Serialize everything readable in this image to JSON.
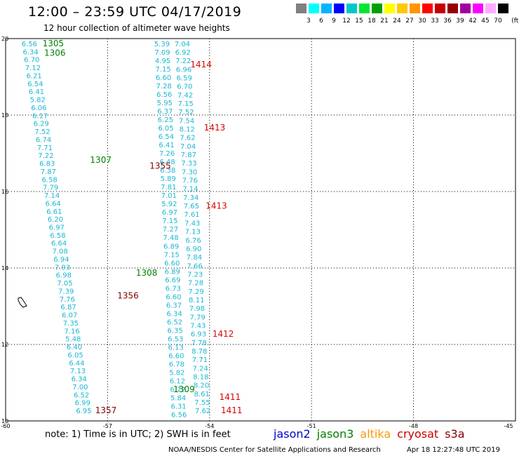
{
  "header": {
    "title": "12:00 – 23:59 UTC 04/17/2019",
    "subtitle": "12 hour collection of altimeter wave heights"
  },
  "legend": {
    "unit": "(ft)",
    "colors": [
      "#808080",
      "#00ffff",
      "#00b4ff",
      "#0000ff",
      "#00c8c8",
      "#00e632",
      "#00a000",
      "#ffff00",
      "#ffc800",
      "#ff9600",
      "#ff0000",
      "#c80000",
      "#960000",
      "#a000a0",
      "#ff00ff",
      "#ffaaff",
      "#000000"
    ],
    "labels": [
      "3",
      "6",
      "9",
      "12",
      "15",
      "18",
      "21",
      "24",
      "27",
      "30",
      "33",
      "36",
      "39",
      "42",
      "45",
      "70"
    ]
  },
  "map": {
    "lon_ticks": [
      "-60",
      "-57",
      "-54",
      "-51",
      "-48",
      "-45"
    ],
    "lat_ticks": [
      "20",
      "18",
      "16",
      "14",
      "12",
      "10"
    ],
    "lon_range": [
      -60,
      -45
    ],
    "lat_range": [
      10,
      20
    ]
  },
  "pass_labels": [
    {
      "text": "1305",
      "color": "#008000",
      "lat": 19.8,
      "lon": -58.6
    },
    {
      "text": "1306",
      "color": "#008000",
      "lat": 19.55,
      "lon": -58.55
    },
    {
      "text": "1414",
      "color": "#dd0000",
      "lat": 19.25,
      "lon": -54.25
    },
    {
      "text": "1413",
      "color": "#dd0000",
      "lat": 17.6,
      "lon": -53.85
    },
    {
      "text": "1307",
      "color": "#008000",
      "lat": 16.75,
      "lon": -57.2
    },
    {
      "text": "1355",
      "color": "#800000",
      "lat": 16.6,
      "lon": -55.45
    },
    {
      "text": "1413",
      "color": "#dd0000",
      "lat": 15.55,
      "lon": -53.8
    },
    {
      "text": "1308",
      "color": "#008000",
      "lat": 13.8,
      "lon": -55.85
    },
    {
      "text": "1356",
      "color": "#800000",
      "lat": 13.2,
      "lon": -56.4
    },
    {
      "text": "1412",
      "color": "#dd0000",
      "lat": 12.2,
      "lon": -53.6
    },
    {
      "text": "1309",
      "color": "#008000",
      "lat": 10.75,
      "lon": -54.75
    },
    {
      "text": "1411",
      "color": "#dd0000",
      "lat": 10.55,
      "lon": -53.4
    },
    {
      "text": "1357",
      "color": "#800000",
      "lat": 10.2,
      "lon": -57.05
    },
    {
      "text": "1411",
      "color": "#dd0000",
      "lat": 10.2,
      "lon": -53.35
    }
  ],
  "tracks": [
    {
      "name": "1305",
      "values": [
        "6.56",
        "6.34",
        "6.70",
        "7.12",
        "6.21",
        "6.54",
        "6.41",
        "5.82",
        "6.06",
        "6.17",
        "6.29",
        "7.52",
        "6.74",
        "7.71",
        "7.22",
        "6.83",
        "7.87",
        "6.58",
        "7.79",
        "7.14",
        "6.64",
        "6.61",
        "6.20",
        "6.97",
        "6.58",
        "6.64",
        "7.08",
        "6.94",
        "7.93",
        "6.98",
        "7.05",
        "7.39",
        "7.76",
        "6.87",
        "6.07",
        "7.35",
        "7.16",
        "5.48",
        "6.40",
        "6.05",
        "6.44",
        "7.13",
        "6.34",
        "7.00",
        "6.52",
        "6.99",
        "6.95"
      ],
      "lat_start": 19.8,
      "lat_end": 10.2,
      "lon_start": -59.3,
      "lon_end": -57.7
    },
    {
      "name": "1355",
      "values": [
        "5.39",
        "7.09",
        "4.95",
        "7.15",
        "6.60",
        "7.28",
        "6.56",
        "5.95",
        "6.37",
        "6.25",
        "6.05",
        "6.54",
        "6.41",
        "7.26",
        "6.48",
        "6.38",
        "5.89",
        "7.81",
        "7.01",
        "5.92",
        "6.97",
        "7.15",
        "7.27",
        "7.48",
        "6.89",
        "7.15",
        "6.60",
        "6.89",
        "6.69",
        "6.73",
        "6.60",
        "6.37",
        "6.34",
        "6.52",
        "6.35",
        "6.53",
        "6.13",
        "6.60",
        "6.78",
        "5.82",
        "6.12",
        "6.72",
        "5.84",
        "6.31",
        "6.56"
      ],
      "lat_start": 19.8,
      "lat_end": 10.1,
      "lon_start": -55.4,
      "lon_end": -54.9
    },
    {
      "name": "1414",
      "values": [
        "7.04",
        "6.92",
        "7.22",
        "6.96",
        "6.59",
        "6.70",
        "7.42",
        "7.15",
        "7.52",
        "7.54",
        "8.12",
        "7.62",
        "7.04",
        "7.87",
        "7.33",
        "7.30",
        "7.76",
        "7.14",
        "7.34",
        "7.65",
        "7.61",
        "7.43",
        "7.13",
        "6.76",
        "6.90",
        "7.84",
        "7.66",
        "7.23",
        "7.28",
        "7.29",
        "8.11",
        "7.98",
        "7.79",
        "7.43",
        "6.93",
        "7.78",
        "8.78",
        "7.71",
        "7.24",
        "8.18",
        "8.20",
        "8.61",
        "7.55",
        "7.62"
      ],
      "lat_start": 19.8,
      "lat_end": 10.2,
      "lon_start": -54.8,
      "lon_end": -54.2
    }
  ],
  "footer": {
    "note": "note:  1) Time is in UTC;  2) SWH is in feet",
    "satellites": [
      {
        "name": "jason2",
        "color": "#0000cc"
      },
      {
        "name": "jason3",
        "color": "#008000"
      },
      {
        "name": "altika",
        "color": "#ff9900"
      },
      {
        "name": "cryosat",
        "color": "#cc0000"
      },
      {
        "name": "s3a",
        "color": "#800000"
      }
    ],
    "center": "NOAA/NESDIS Center for Satellite Applications and Research",
    "timestamp": "Apr 18 12:27:48 UTC 2019"
  }
}
